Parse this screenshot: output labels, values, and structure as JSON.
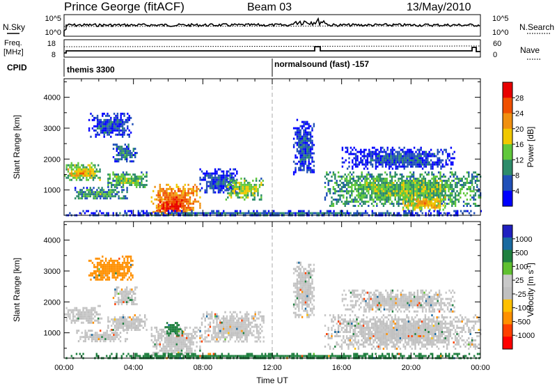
{
  "header": {
    "station": "Prince George (fitACF)",
    "beam": "Beam 03",
    "date": "13/May/2010"
  },
  "top_panels": {
    "nsky_label": "N.Sky",
    "nsky_ticks": [
      "10^5",
      "10^0"
    ],
    "nsearch_label": "N.Search",
    "nsearch_ticks": [
      "10^5",
      "10^0"
    ],
    "freq_label": "Freq.",
    "freq_unit": "[MHz]",
    "freq_ticks": [
      "18",
      "8"
    ],
    "nave_label": "Nave",
    "nave_ticks": [
      "60",
      "0"
    ],
    "cpid_label": "CPID",
    "cpid_segments": [
      {
        "label": "themis 3300",
        "start_hour": 0
      },
      {
        "label": "normalsound (fast) -157",
        "start_hour": 12
      }
    ]
  },
  "colors": {
    "power": [
      "#0000ff",
      "#2050b8",
      "#2d8c6a",
      "#60c83c",
      "#f0c800",
      "#f09010",
      "#f05000",
      "#e80000"
    ],
    "velocity": [
      "#ff0000",
      "#ff4000",
      "#ff9000",
      "#ffc000",
      "#c0c0c0",
      "#c8c8c8",
      "#60c030",
      "#208040",
      "#1a6aa0",
      "#2020c0"
    ]
  },
  "chart_data": [
    {
      "type": "heatmap",
      "title": "Power",
      "ylabel": "Slant Range [km]",
      "xlabel": "",
      "x_ticks": [
        "00:00",
        "04:00",
        "08:00",
        "12:00",
        "16:00",
        "20:00",
        "00:00"
      ],
      "xlim_hours": [
        0,
        24
      ],
      "y_ticks": [
        1000,
        2000,
        3000,
        4000
      ],
      "ylim": [
        180,
        4600
      ],
      "colorbar": {
        "label": "Power [dB]",
        "ticks": [
          "28",
          "24",
          "20",
          "16",
          "12",
          "8",
          "4"
        ],
        "range": [
          0,
          30
        ]
      },
      "regions": [
        {
          "t0": 0.0,
          "t1": 2.2,
          "r0": 1300,
          "r1": 1900,
          "value": 14
        },
        {
          "t0": 0.2,
          "t1": 1.8,
          "r0": 1450,
          "r1": 1700,
          "value": 20
        },
        {
          "t0": 2.4,
          "t1": 4.8,
          "r0": 1100,
          "r1": 1600,
          "value": 12
        },
        {
          "t0": 2.8,
          "t1": 4.2,
          "r0": 1900,
          "r1": 2500,
          "value": 8
        },
        {
          "t0": 1.4,
          "t1": 4.0,
          "r0": 2700,
          "r1": 3500,
          "value": 5
        },
        {
          "t0": 0.6,
          "t1": 3.6,
          "r0": 700,
          "r1": 1100,
          "value": 10
        },
        {
          "t0": 5.0,
          "t1": 7.8,
          "r0": 250,
          "r1": 1200,
          "value": 22
        },
        {
          "t0": 5.3,
          "t1": 7.0,
          "r0": 250,
          "r1": 700,
          "value": 27
        },
        {
          "t0": 7.8,
          "t1": 10.0,
          "r0": 900,
          "r1": 1700,
          "value": 5
        },
        {
          "t0": 9.3,
          "t1": 11.5,
          "r0": 700,
          "r1": 1400,
          "value": 14
        },
        {
          "t0": 13.2,
          "t1": 14.4,
          "r0": 1500,
          "r1": 3300,
          "value": 5
        },
        {
          "t0": 15.0,
          "t1": 24.0,
          "r0": 500,
          "r1": 1600,
          "value": 12
        },
        {
          "t0": 16.0,
          "t1": 22.5,
          "r0": 1700,
          "r1": 2400,
          "value": 5
        },
        {
          "t0": 19.5,
          "t1": 22.0,
          "r0": 350,
          "r1": 800,
          "value": 18
        },
        {
          "t0": 0.0,
          "t1": 24.0,
          "r0": 180,
          "r1": 350,
          "value": 6
        }
      ]
    },
    {
      "type": "heatmap",
      "title": "Velocity",
      "ylabel": "Slant Range [km]",
      "xlabel": "Time UT",
      "x_ticks": [
        "00:00",
        "04:00",
        "08:00",
        "12:00",
        "16:00",
        "20:00",
        "00:00"
      ],
      "xlim_hours": [
        0,
        24
      ],
      "y_ticks": [
        1000,
        2000,
        3000,
        4000
      ],
      "ylim": [
        180,
        4600
      ],
      "colorbar": {
        "label": "Velocity [m s^-1]",
        "ticks": [
          "1000",
          "500",
          "100",
          "25",
          "-25",
          "-100",
          "-500",
          "-1000"
        ],
        "range": [
          -1000,
          1000
        ]
      },
      "regions": [
        {
          "t0": 0.0,
          "t1": 2.2,
          "r0": 1300,
          "r1": 1900,
          "value": 0
        },
        {
          "t0": 2.4,
          "t1": 4.8,
          "r0": 1100,
          "r1": 1600,
          "value": 0
        },
        {
          "t0": 2.8,
          "t1": 4.2,
          "r0": 1900,
          "r1": 2500,
          "value": 0
        },
        {
          "t0": 1.4,
          "t1": 4.0,
          "r0": 2700,
          "r1": 3500,
          "value": -150
        },
        {
          "t0": 0.6,
          "t1": 3.6,
          "r0": 700,
          "r1": 1100,
          "value": 0
        },
        {
          "t0": 5.0,
          "t1": 7.8,
          "r0": 250,
          "r1": 1200,
          "value": 0
        },
        {
          "t0": 5.8,
          "t1": 6.8,
          "r0": 900,
          "r1": 1350,
          "value": 150
        },
        {
          "t0": 7.8,
          "t1": 11.5,
          "r0": 700,
          "r1": 1700,
          "value": 0
        },
        {
          "t0": 13.2,
          "t1": 14.4,
          "r0": 1500,
          "r1": 3300,
          "value": 0
        },
        {
          "t0": 15.0,
          "t1": 24.0,
          "r0": 500,
          "r1": 1600,
          "value": 0
        },
        {
          "t0": 16.0,
          "t1": 22.5,
          "r0": 1700,
          "r1": 2400,
          "value": 0
        },
        {
          "t0": 0.0,
          "t1": 24.0,
          "r0": 180,
          "r1": 350,
          "value": 150
        }
      ]
    }
  ]
}
